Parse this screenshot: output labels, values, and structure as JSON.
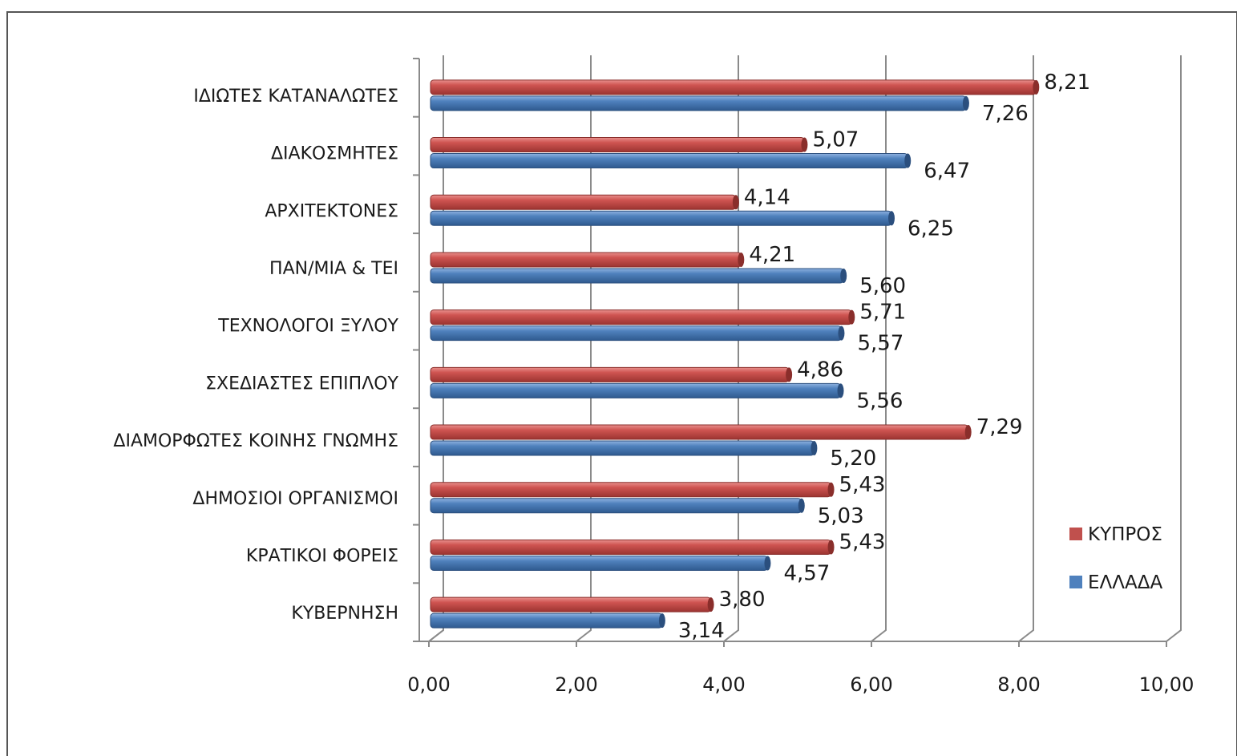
{
  "chart_data": {
    "type": "bar",
    "orientation": "horizontal",
    "categories": [
      "ΙΔΙΩΤΕΣ ΚΑΤΑΝΑΛΩΤΕΣ",
      "ΔΙΑΚΟΣΜΗΤΕΣ",
      "ΑΡΧΙΤΕΚΤΟΝΕΣ",
      "ΠΑΝ/ΜΙΑ & ΤΕΙ",
      "ΤΕΧΝΟΛΟΓΟΙ ΞΥΛΟΥ",
      "ΣΧΕΔΙΑΣΤΕΣ ΕΠΙΠΛΟΥ",
      "ΔΙΑΜΟΡΦΩΤΕΣ ΚΟΙΝΗΣ ΓΝΩΜΗΣ",
      "ΔΗΜΟΣΙΟΙ ΟΡΓΑΝΙΣΜΟΙ",
      "ΚΡΑΤΙΚΟΙ ΦΟΡΕΙΣ",
      "ΚΥΒΕΡΝΗΣΗ"
    ],
    "series": [
      {
        "name": "ΚΥΠΡΟΣ",
        "color": "#c0504d",
        "values": [
          8.21,
          5.07,
          4.14,
          4.21,
          5.71,
          4.86,
          7.29,
          5.43,
          5.43,
          3.8
        ],
        "labels": [
          "8,21",
          "5,07",
          "4,14",
          "4,21",
          "5,71",
          "4,86",
          "7,29",
          "5,43",
          "5,43",
          "3,80"
        ]
      },
      {
        "name": "ΕΛΛΑΔΑ",
        "color": "#4f81bd",
        "values": [
          7.26,
          6.47,
          6.25,
          5.6,
          5.57,
          5.56,
          5.2,
          5.03,
          4.57,
          3.14
        ],
        "labels": [
          "7,26",
          "6,47",
          "6,25",
          "5,60",
          "5,57",
          "5,56",
          "5,20",
          "5,03",
          "4,57",
          "3,14"
        ]
      }
    ],
    "xlim": [
      0,
      10
    ],
    "xticks": [
      "0,00",
      "2,00",
      "4,00",
      "6,00",
      "8,00",
      "10,00"
    ],
    "grid": true,
    "legend": "right",
    "title": "",
    "xlabel": "",
    "ylabel": ""
  }
}
